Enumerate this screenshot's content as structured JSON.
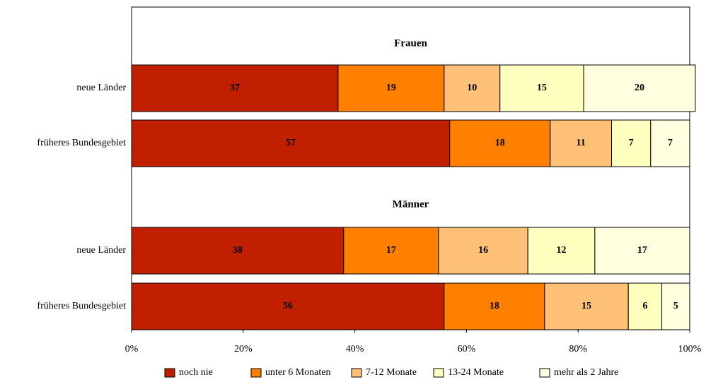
{
  "chart_data": {
    "type": "bar",
    "orientation": "horizontal",
    "stacked": true,
    "xlim": [
      0,
      100
    ],
    "x_ticks": [
      "0%",
      "20%",
      "40%",
      "60%",
      "80%",
      "100%"
    ],
    "grid": false,
    "legend_position": "bottom",
    "series": [
      {
        "name": "noch nie",
        "color": "#C02000"
      },
      {
        "name": "unter 6 Monaten",
        "color": "#FF8000"
      },
      {
        "name": "7-12 Monate",
        "color": "#FFC078"
      },
      {
        "name": "13-24 Monate",
        "color": "#FFFFC0"
      },
      {
        "name": "mehr als 2 Jahre",
        "color": "#FFFFE0"
      }
    ],
    "groups": [
      {
        "label": "Frauen",
        "bars": [
          {
            "label": "neue Länder",
            "values": [
              37,
              19,
              10,
              15,
              20
            ]
          },
          {
            "label": "früheres Bundesgebiet",
            "values": [
              57,
              18,
              11,
              7,
              7
            ]
          }
        ]
      },
      {
        "label": "Männer",
        "bars": [
          {
            "label": "neue Länder",
            "values": [
              38,
              17,
              16,
              12,
              17
            ]
          },
          {
            "label": "früheres Bundesgebiet",
            "values": [
              56,
              18,
              15,
              6,
              5
            ]
          }
        ]
      }
    ]
  }
}
